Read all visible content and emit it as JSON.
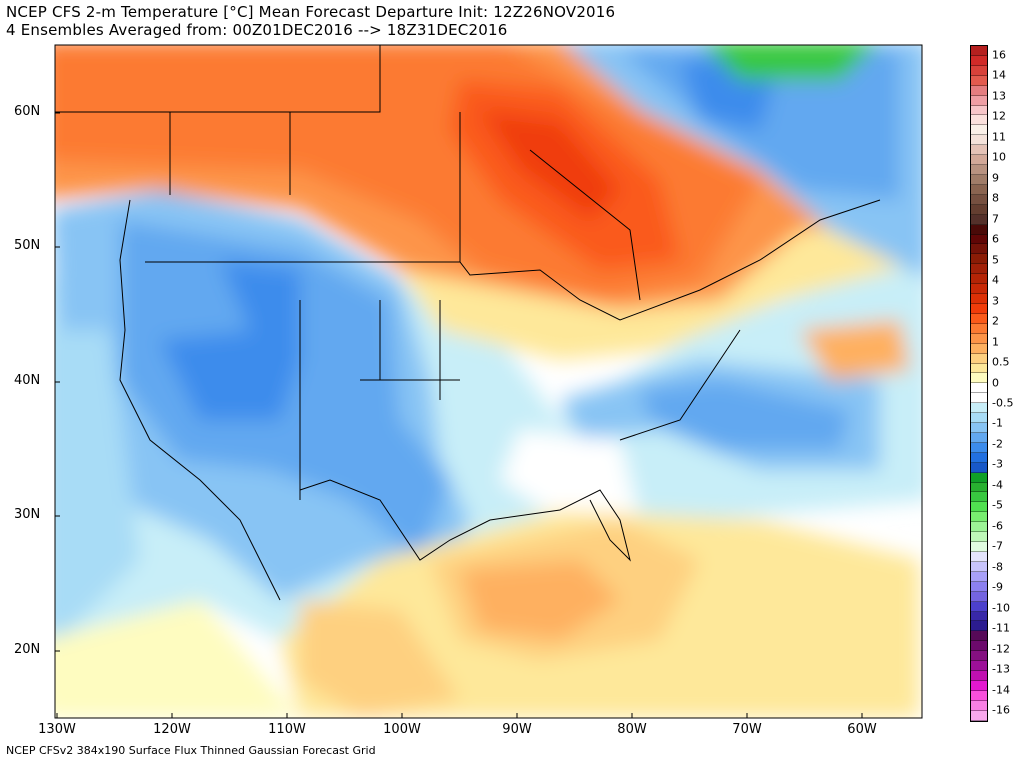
{
  "header": {
    "line1": "NCEP CFS 2-m Temperature [°C] Mean Forecast Departure Init: 12Z26NOV2016",
    "line2": "4 Ensembles Averaged from: 00Z01DEC2016 --> 18Z31DEC2016"
  },
  "footer": "NCEP CFSv2 384x190 Surface Flux Thinned Gaussian Forecast Grid",
  "lat_labels": [
    "60N",
    "50N",
    "40N",
    "30N",
    "20N"
  ],
  "lon_labels": [
    "130W",
    "120W",
    "110W",
    "100W",
    "90W",
    "80W",
    "70W",
    "60W"
  ],
  "colorbar": {
    "labels": [
      "16",
      "14",
      "13",
      "12",
      "11",
      "10",
      "9",
      "8",
      "7",
      "6",
      "5",
      "4",
      "3",
      "2",
      "1",
      "0.5",
      "0",
      "-0.5",
      "-1",
      "-2",
      "-3",
      "-4",
      "-5",
      "-6",
      "-7",
      "-8",
      "-9",
      "-10",
      "-11",
      "-12",
      "-13",
      "-14",
      "-16"
    ],
    "colors": [
      "#b5201f",
      "#d02a28",
      "#d8413a",
      "#e35a4e",
      "#e57d80",
      "#ef9ea4",
      "#f7c5c8",
      "#fbe0dc",
      "#faf0e8",
      "#f4e2da",
      "#e4c2b6",
      "#d2a898",
      "#b89280",
      "#a07c68",
      "#8a6450",
      "#765040",
      "#643e30",
      "#54302a",
      "#4a0a08",
      "#600606",
      "#741208",
      "#8a1c06",
      "#a02008",
      "#b42406",
      "#c82806",
      "#dc3006",
      "#f03c0a",
      "#fa5a1a",
      "#fc7a32",
      "#fd9448",
      "#feb060",
      "#fed080",
      "#fee89a",
      "#fefcc0",
      "#ffffff",
      "#ffffff",
      "#c8eef8",
      "#a8dcf6",
      "#88c4f4",
      "#62a8f0",
      "#3c8cec",
      "#2270e0",
      "#1858c8",
      "#10a028",
      "#28b030",
      "#38c840",
      "#50e050",
      "#78ee70",
      "#9cf496",
      "#bef8b8",
      "#e0fce0",
      "#e4e4fc",
      "#c8c4fc",
      "#a8a0f8",
      "#8c80f0",
      "#7464e0",
      "#4c40cc",
      "#3828a8",
      "#2c1c90",
      "#560a58",
      "#6c0a6c",
      "#841080",
      "#9c1098",
      "#c010b0",
      "#e418d0",
      "#f850dc",
      "#f880e4",
      "#f8a8ec"
    ]
  }
}
